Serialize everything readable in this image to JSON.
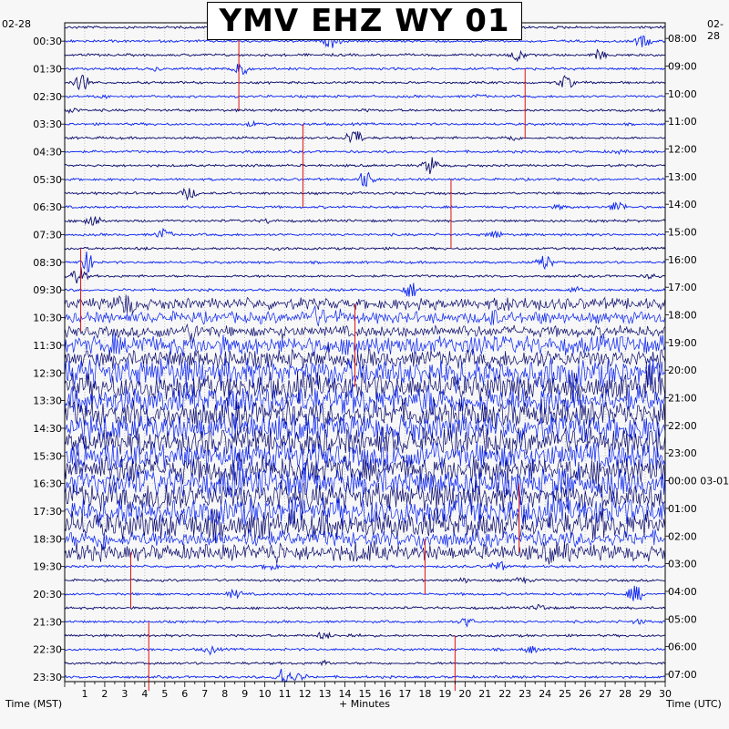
{
  "chart_data": {
    "type": "line",
    "title": "YMV EHZ WY 01",
    "xlabel": "+ Minutes",
    "ylabel_left": "Time (MST)",
    "ylabel_right": "Time (UTC)",
    "start_date_left": "02-28",
    "start_date_right": "02-28",
    "xlim": [
      0,
      30
    ],
    "x_ticks": [
      1,
      2,
      3,
      4,
      5,
      6,
      7,
      8,
      9,
      10,
      11,
      12,
      13,
      14,
      15,
      16,
      17,
      18,
      19,
      20,
      21,
      22,
      23,
      24,
      25,
      26,
      27,
      28,
      29,
      30
    ],
    "left_time_labels": [
      "00:30",
      "01:30",
      "02:30",
      "03:30",
      "04:30",
      "05:30",
      "06:30",
      "07:30",
      "08:30",
      "09:30",
      "10:30",
      "11:30",
      "12:30",
      "13:30",
      "14:30",
      "15:30",
      "16:30",
      "17:30",
      "18:30",
      "19:30",
      "20:30",
      "21:30",
      "22:30",
      "23:30"
    ],
    "right_time_labels": [
      "08:00",
      "09:00",
      "10:00",
      "11:00",
      "12:00",
      "13:00",
      "14:00",
      "15:00",
      "16:00",
      "17:00",
      "18:00",
      "19:00",
      "20:00",
      "21:00",
      "22:00",
      "23:00",
      "00:00 03-01",
      "01:00",
      "02:00",
      "03:00",
      "04:00",
      "05:00",
      "06:00",
      "07:00"
    ],
    "trace_count": 48,
    "trace_colors": [
      "#0a0a6e",
      "#0a24f5"
    ],
    "clip_color": "#dd1111",
    "grid": true,
    "legend": "none"
  }
}
